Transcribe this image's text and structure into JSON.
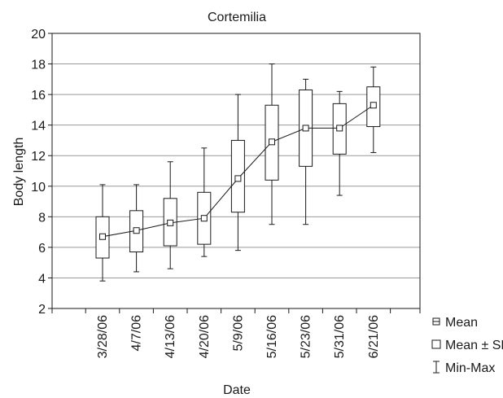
{
  "chart_data": {
    "type": "box",
    "title": "Cortemilia",
    "xlabel": "Date",
    "ylabel": "Body length",
    "ylim": [
      2,
      20
    ],
    "yticks": [
      2,
      4,
      6,
      8,
      10,
      12,
      14,
      16,
      18,
      20
    ],
    "grid": "horizontal",
    "legend_position": "right-bottom",
    "categories": [
      "3/28/06",
      "4/7/06",
      "4/13/06",
      "4/20/06",
      "5/9/06",
      "5/16/06",
      "5/23/06",
      "5/31/06",
      "6/21/06"
    ],
    "series": [
      {
        "name": "Mean",
        "values": [
          6.7,
          7.1,
          7.6,
          7.9,
          10.5,
          12.9,
          13.8,
          13.8,
          15.3
        ]
      },
      {
        "name": "Mean ± SD",
        "lower": [
          5.3,
          5.7,
          6.1,
          6.2,
          8.3,
          10.4,
          11.3,
          12.1,
          13.9
        ],
        "upper": [
          8.0,
          8.4,
          9.2,
          9.6,
          13.0,
          15.3,
          16.3,
          15.4,
          16.5
        ]
      },
      {
        "name": "Min-Max",
        "min": [
          3.8,
          4.4,
          4.6,
          5.4,
          5.8,
          7.5,
          7.5,
          9.4,
          12.2
        ],
        "max": [
          10.1,
          10.1,
          11.6,
          12.5,
          16.0,
          18.0,
          17.0,
          16.2,
          17.8
        ]
      }
    ],
    "colors": {
      "axis": "#1a1a1a",
      "grid": "#999999",
      "box_fill": "#ffffff",
      "line": "#1a1a1a"
    },
    "legend_icons": [
      "mean-marker-icon",
      "box-square-icon",
      "whisker-icon"
    ]
  }
}
